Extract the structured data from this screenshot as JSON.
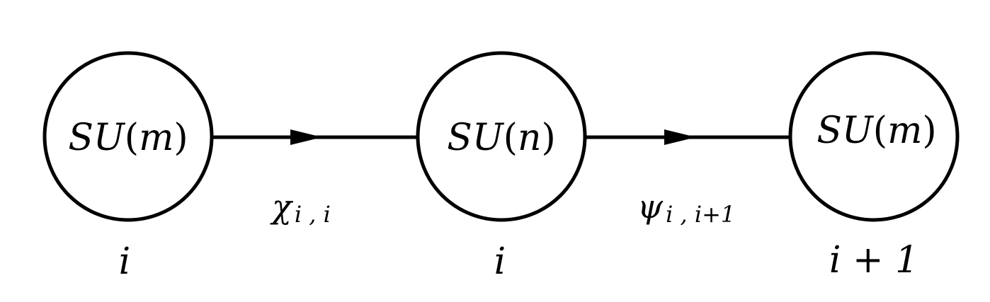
{
  "nodes": [
    {
      "group": "SU",
      "rank": "m",
      "index": "i"
    },
    {
      "group": "SU",
      "rank": "n",
      "index": "i"
    },
    {
      "group": "SU",
      "rank": "m",
      "index": "i + 1"
    }
  ],
  "edges": [
    {
      "symbol": "χ",
      "subscript": "i , i"
    },
    {
      "symbol": "ψ",
      "subscript": "i , i+1"
    }
  ]
}
